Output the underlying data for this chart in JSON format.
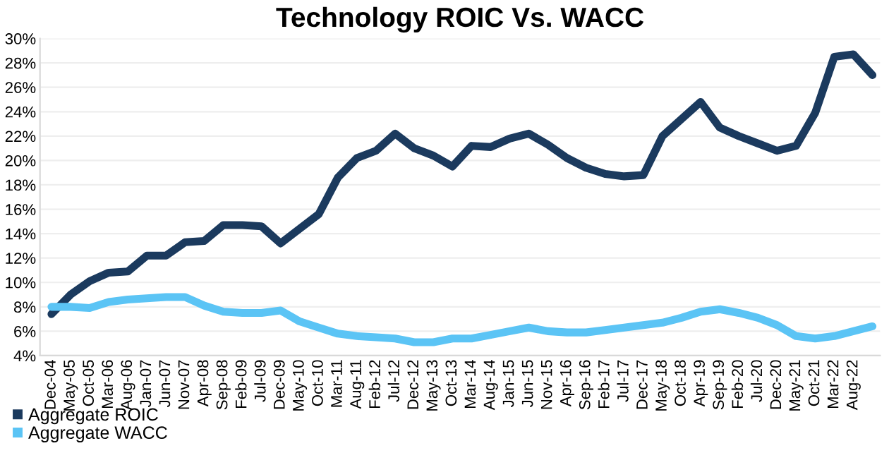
{
  "chart_data": {
    "type": "line",
    "title": "Technology ROIC Vs. WACC",
    "categories": [
      "Dec-04",
      "May-05",
      "Oct-05",
      "Mar-06",
      "Aug-06",
      "Jan-07",
      "Jun-07",
      "Nov-07",
      "Apr-08",
      "Sep-08",
      "Feb-09",
      "Jul-09",
      "Dec-09",
      "May-10",
      "Oct-10",
      "Mar-11",
      "Aug-11",
      "Feb-12",
      "Jul-12",
      "Dec-12",
      "May-13",
      "Oct-13",
      "Mar-14",
      "Aug-14",
      "Jan-15",
      "Jun-15",
      "Nov-15",
      "Apr-16",
      "Sep-16",
      "Feb-17",
      "Jul-17",
      "Dec-17",
      "May-18",
      "Oct-18",
      "Apr-19",
      "Sep-19",
      "Feb-20",
      "Jul-20",
      "Dec-20",
      "May-21",
      "Oct-21",
      "Mar-22",
      "Aug-22",
      null
    ],
    "series": [
      {
        "name": "Aggregate ROIC",
        "color": "#1b3a5e",
        "values": [
          7.4,
          9.0,
          10.1,
          10.8,
          10.9,
          12.2,
          12.2,
          13.3,
          13.4,
          14.7,
          14.7,
          14.6,
          13.2,
          14.4,
          15.6,
          18.6,
          20.2,
          20.8,
          22.2,
          21.0,
          20.4,
          19.5,
          21.2,
          21.1,
          21.8,
          22.2,
          21.3,
          20.2,
          19.4,
          18.9,
          18.7,
          18.8,
          22.0,
          23.4,
          24.8,
          22.7,
          22.0,
          21.4,
          20.8,
          21.2,
          23.9,
          28.5,
          28.7,
          27.0
        ]
      },
      {
        "name": "Aggregate WACC",
        "color": "#5bc4f5",
        "values": [
          8.0,
          8.0,
          7.9,
          8.4,
          8.6,
          8.7,
          8.8,
          8.8,
          8.1,
          7.6,
          7.5,
          7.5,
          7.7,
          6.8,
          6.3,
          5.8,
          5.6,
          5.5,
          5.4,
          5.1,
          5.1,
          5.4,
          5.4,
          5.7,
          6.0,
          6.3,
          6.0,
          5.9,
          5.9,
          6.1,
          6.3,
          6.5,
          6.7,
          7.1,
          7.6,
          7.8,
          7.5,
          7.1,
          6.5,
          5.6,
          5.4,
          5.6,
          6.0,
          6.4
        ]
      }
    ],
    "ylim": [
      4,
      30
    ],
    "yticks": [
      {
        "value": 4,
        "label": "4%"
      },
      {
        "value": 6,
        "label": "6%"
      },
      {
        "value": 8,
        "label": "8%"
      },
      {
        "value": 10,
        "label": "10%"
      },
      {
        "value": 12,
        "label": "12%"
      },
      {
        "value": 14,
        "label": "14%"
      },
      {
        "value": 16,
        "label": "16%"
      },
      {
        "value": 18,
        "label": "18%"
      },
      {
        "value": 20,
        "label": "20%"
      },
      {
        "value": 22,
        "label": "22%"
      },
      {
        "value": 24,
        "label": "24%"
      },
      {
        "value": 26,
        "label": "26%"
      },
      {
        "value": 28,
        "label": "28%"
      },
      {
        "value": 30,
        "label": "30%"
      }
    ],
    "grid": "y",
    "legend": "bottom left",
    "marker": "none",
    "line_style": "solid"
  }
}
